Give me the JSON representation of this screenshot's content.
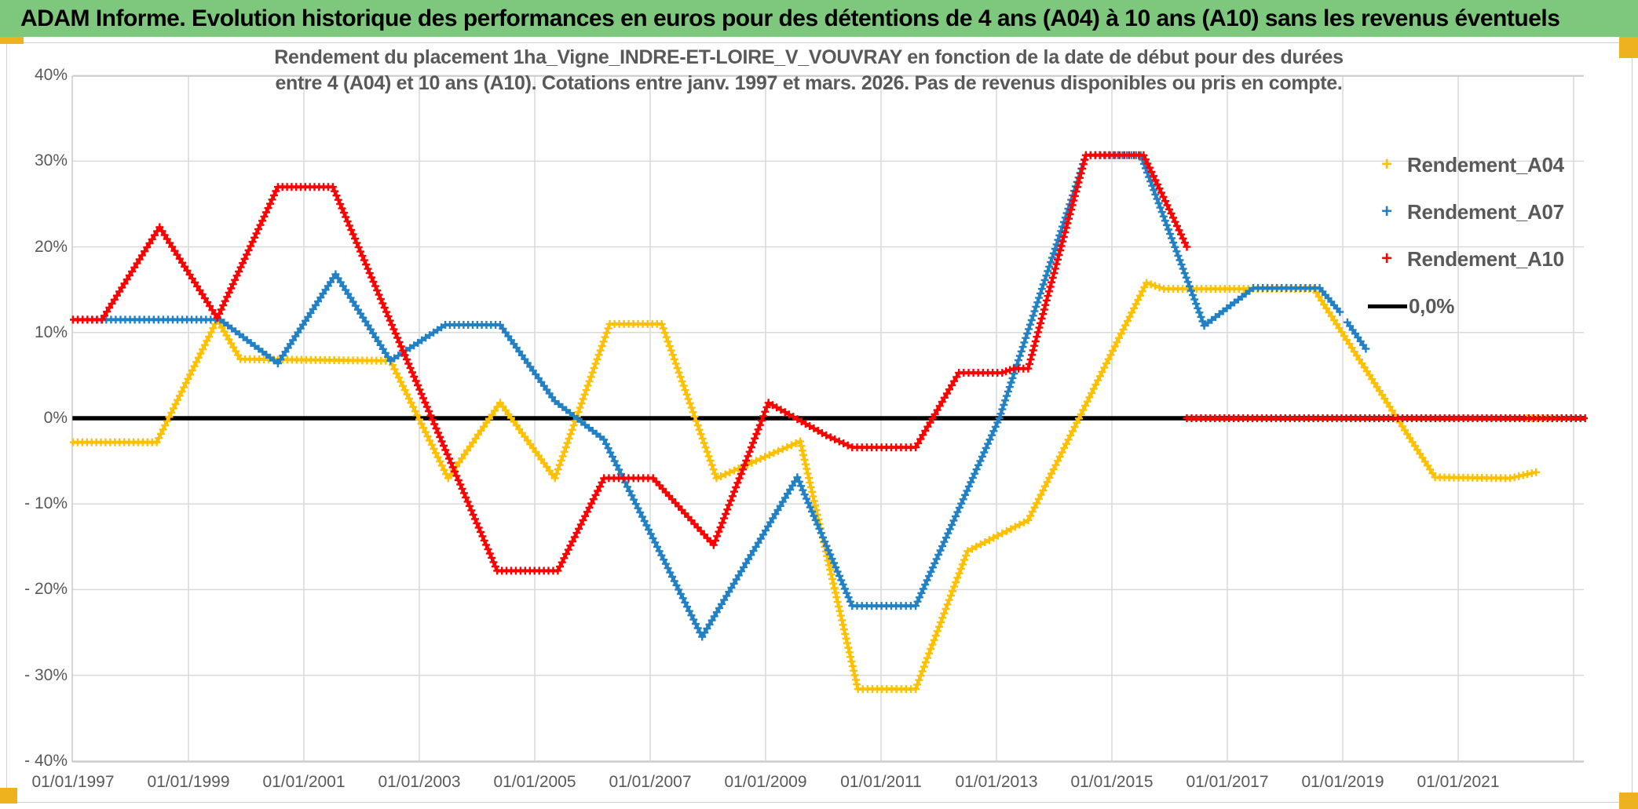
{
  "title_bar": {
    "text": "ADAM Informe. Evolution historique des performances en euros pour des détentions de 4 ans (A04) à 10 ans (A10) sans les revenus éventuels"
  },
  "chart": {
    "subtitle_line1": "Rendement du placement 1ha_Vigne_INDRE-ET-LOIRE_V_VOUVRAY en fonction de la date de début pour des durées",
    "subtitle_line2": "entre 4 (A04) et 10 ans (A10). Cotations entre janv. 1997 et mars. 2026. Pas de revenus disponibles ou pris en compte.",
    "y_axis": {
      "labels": [
        "40%",
        "30%",
        "20%",
        "10%",
        "0%",
        "- 10%",
        "- 20%",
        "- 30%",
        "- 40%"
      ],
      "values": [
        40,
        30,
        20,
        10,
        0,
        -10,
        -20,
        -30,
        -40
      ]
    },
    "x_axis": {
      "labels": [
        "01/01/1997",
        "01/01/1999",
        "01/01/2001",
        "01/01/2003",
        "01/01/2005",
        "01/01/2007",
        "01/01/2009",
        "01/01/2011",
        "01/01/2013",
        "01/01/2015",
        "01/01/2017",
        "01/01/2019",
        "01/01/2021"
      ],
      "label_years": [
        1997,
        1999,
        2001,
        2003,
        2005,
        2007,
        2009,
        2011,
        2013,
        2015,
        2017,
        2019,
        2021
      ],
      "grid_years": [
        1999,
        2001,
        2003,
        2005,
        2007,
        2009,
        2011,
        2013,
        2015,
        2017,
        2019,
        2021,
        2023
      ]
    },
    "legend": [
      {
        "label": "Rendement_A04",
        "marker": "+",
        "color": "#FFC000"
      },
      {
        "label": "Rendement_A07",
        "marker": "+",
        "color": "#2181C4"
      },
      {
        "label": "Rendement_A10",
        "marker": "+",
        "color": "#FE0000"
      },
      {
        "label": "0,0%",
        "marker": "line",
        "color": "#000000"
      }
    ]
  },
  "chart_data": {
    "type": "line",
    "x_unit": "decimal_year",
    "xlim": [
      1997.0,
      2023.3
    ],
    "ylim": [
      -40,
      40
    ],
    "grid": true,
    "legend_position": "right",
    "series": [
      {
        "name": "Rendement_A04",
        "color": "#FFC000",
        "segments": [
          [
            [
              1997.0,
              -2.8
            ],
            [
              1998.45,
              -2.8
            ],
            [
              1999.5,
              11.5
            ],
            [
              1999.9,
              6.9
            ],
            [
              2002.5,
              6.7
            ],
            [
              2003.5,
              -7.0
            ],
            [
              2004.4,
              1.8
            ],
            [
              2005.35,
              -7.0
            ],
            [
              2006.3,
              11.0
            ],
            [
              2007.2,
              11.0
            ],
            [
              2008.15,
              -7.0
            ],
            [
              2009.6,
              -2.7
            ],
            [
              2010.6,
              -31.6
            ],
            [
              2011.6,
              -31.6
            ],
            [
              2012.5,
              -15.5
            ],
            [
              2013.55,
              -11.9
            ],
            [
              2015.6,
              15.8
            ],
            [
              2015.9,
              15.1
            ],
            [
              2018.5,
              15.1
            ],
            [
              2020.6,
              -6.9
            ],
            [
              2021.9,
              -7.0
            ],
            [
              2022.35,
              -6.3
            ]
          ],
          [
            [
              2022.2,
              0.0
            ],
            [
              2023.2,
              0.0
            ]
          ]
        ]
      },
      {
        "name": "Rendement_A07",
        "color": "#2181C4",
        "segments": [
          [
            [
              1997.0,
              11.5
            ],
            [
              1999.55,
              11.5
            ],
            [
              2000.55,
              6.4
            ],
            [
              2001.55,
              16.8
            ],
            [
              2002.5,
              6.7
            ],
            [
              2003.45,
              10.9
            ],
            [
              2004.4,
              10.9
            ],
            [
              2005.35,
              2.0
            ],
            [
              2006.2,
              -2.5
            ],
            [
              2006.9,
              -12.0
            ],
            [
              2007.9,
              -25.5
            ],
            [
              2009.55,
              -6.9
            ],
            [
              2010.5,
              -21.9
            ],
            [
              2011.6,
              -21.9
            ],
            [
              2013.05,
              0.0
            ],
            [
              2014.55,
              30.7
            ],
            [
              2015.5,
              30.7
            ],
            [
              2016.6,
              10.8
            ],
            [
              2017.45,
              15.2
            ],
            [
              2018.6,
              15.2
            ],
            [
              2018.95,
              12.4
            ]
          ],
          [
            [
              2019.08,
              11.2
            ],
            [
              2019.4,
              8.1
            ]
          ]
        ]
      },
      {
        "name": "Rendement_A10",
        "color": "#FE0000",
        "segments": [
          [
            [
              1997.0,
              11.5
            ],
            [
              1997.5,
              11.5
            ],
            [
              1998.5,
              22.3
            ],
            [
              1999.5,
              11.7
            ],
            [
              2000.55,
              27.0
            ],
            [
              2001.5,
              27.0
            ],
            [
              2004.35,
              -17.8
            ],
            [
              2005.4,
              -17.8
            ],
            [
              2006.2,
              -7.0
            ],
            [
              2007.05,
              -7.0
            ],
            [
              2008.1,
              -14.8
            ],
            [
              2009.05,
              1.8
            ],
            [
              2010.05,
              -2.0
            ],
            [
              2010.5,
              -3.4
            ],
            [
              2011.6,
              -3.4
            ],
            [
              2012.35,
              5.3
            ],
            [
              2013.1,
              5.3
            ],
            [
              2013.3,
              5.8
            ],
            [
              2013.55,
              5.8
            ],
            [
              2014.55,
              30.7
            ],
            [
              2015.55,
              30.7
            ],
            [
              2016.3,
              20.0
            ]
          ],
          [
            [
              2016.3,
              0.0
            ],
            [
              2023.2,
              0.0
            ]
          ]
        ]
      },
      {
        "name": "0,0%",
        "color": "#000000",
        "segments": [
          [
            [
              1996.99,
              0.0
            ],
            [
              2023.2,
              0.0
            ]
          ]
        ]
      }
    ]
  },
  "colors": {
    "title_bg": "#7DC87D",
    "accent_tab": "#EDB21E",
    "text_grey": "#595959",
    "grid": "#D9D9D9",
    "plot_border": "#C9C9C9",
    "a04": "#FFC000",
    "a07": "#2181C4",
    "a10": "#FE0000",
    "zero_line": "#000000"
  }
}
